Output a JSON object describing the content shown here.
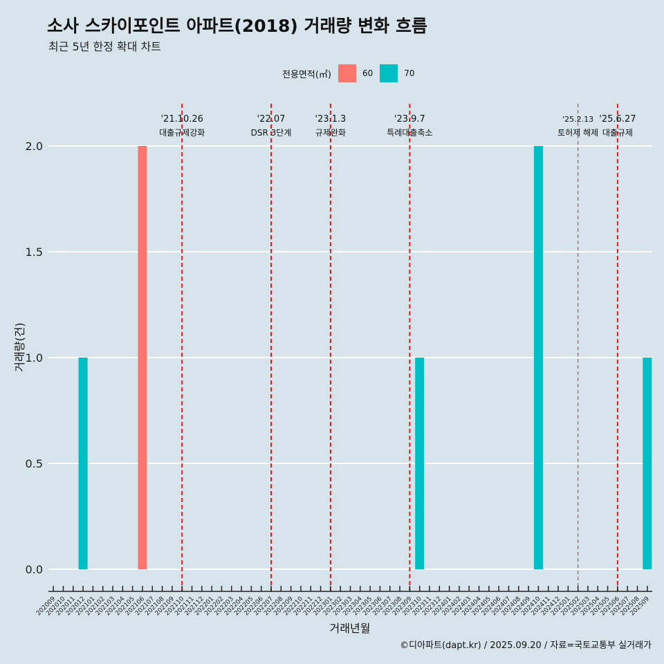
{
  "chart_data": {
    "type": "bar",
    "title": "소사 스카이포인트 아파트(2018) 거래량 변화 흐름",
    "subtitle": "최근 5년 한정 확대 차트",
    "xlabel": "거래년월",
    "ylabel": "거래량(건)",
    "ylim": [
      0,
      2
    ],
    "yticks": [
      "0.0",
      "0.5",
      "1.0",
      "1.5",
      "2.0"
    ],
    "ytick_values": [
      0,
      0.5,
      1.0,
      1.5,
      2.0
    ],
    "legend": {
      "title": "전용면적(㎡)",
      "position": "top",
      "items": [
        {
          "name": "60",
          "color": "#F8766D"
        },
        {
          "name": "70",
          "color": "#00BFC4"
        }
      ]
    },
    "categories": [
      "202009",
      "202010",
      "202011",
      "202012",
      "202101",
      "202102",
      "202103",
      "202104",
      "202105",
      "202106",
      "202107",
      "202108",
      "202109",
      "202110",
      "202111",
      "202112",
      "202201",
      "202202",
      "202203",
      "202204",
      "202205",
      "202206",
      "202207",
      "202208",
      "202209",
      "202210",
      "202211",
      "202212",
      "202301",
      "202302",
      "202303",
      "202304",
      "202305",
      "202306",
      "202307",
      "202308",
      "202309",
      "202310",
      "202311",
      "202312",
      "202401",
      "202402",
      "202403",
      "202404",
      "202405",
      "202406",
      "202407",
      "202408",
      "202409",
      "202410",
      "202411",
      "202412",
      "202501",
      "202502",
      "202503",
      "202504",
      "202505",
      "202506",
      "202507",
      "202508",
      "202509"
    ],
    "series": [
      {
        "name": "60",
        "color": "#F8766D",
        "points": [
          {
            "x": "202106",
            "y": 2
          }
        ]
      },
      {
        "name": "70",
        "color": "#00BFC4",
        "points": [
          {
            "x": "202012",
            "y": 1
          },
          {
            "x": "202310",
            "y": 1
          },
          {
            "x": "202410",
            "y": 2
          },
          {
            "x": "202509",
            "y": 1
          }
        ]
      }
    ],
    "annotations": [
      {
        "x": "202110",
        "date": "'21.10.26",
        "label": "대출규제강화",
        "style": "bold"
      },
      {
        "x": "202207",
        "date": "'22.07",
        "label": "DSR 3단계",
        "style": "bold"
      },
      {
        "x": "202301",
        "date": "'23.1.3",
        "label": "규제완화",
        "style": "bold"
      },
      {
        "x": "202309",
        "date": "'23.9.7",
        "label": "특례대출축소",
        "style": "bold"
      },
      {
        "x": "202502",
        "date": "'25.2.13",
        "label": "토허제 해제",
        "style": "thin"
      },
      {
        "x": "202506",
        "date": "'25.6.27",
        "label": "대출규제",
        "style": "bold"
      }
    ]
  },
  "caption": "©디아파트(dapt.kr) / 2025.09.20 / 자료=국토교통부 실거래가",
  "colors": {
    "background": "#d7e4eb",
    "gridline": "#ffffff",
    "annotation_line": "#e31a1c"
  }
}
